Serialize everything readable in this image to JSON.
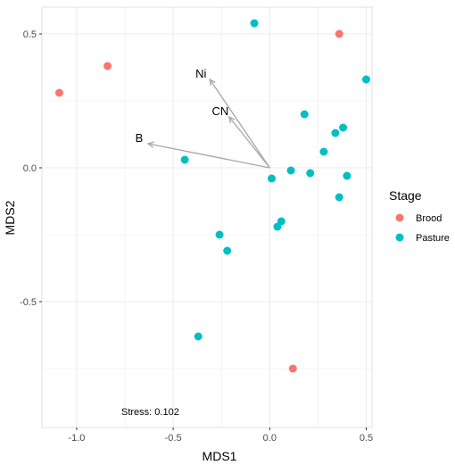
{
  "chart_data": {
    "type": "scatter",
    "xlabel": "MDS1",
    "ylabel": "MDS2",
    "xlim": [
      -1.18,
      0.53
    ],
    "ylim": [
      -0.97,
      0.6
    ],
    "x_ticks": [
      -1.0,
      -0.5,
      0.0,
      0.5
    ],
    "x_tick_labels": [
      "-1.0",
      "-0.5",
      "0.0",
      "0.5"
    ],
    "y_ticks": [
      0.5,
      0.0,
      -0.5
    ],
    "y_tick_labels": [
      "0.5",
      "0.0",
      "-0.5"
    ],
    "grid": true,
    "legend": {
      "title": "Stage",
      "placement": "right"
    },
    "annotation": "Stress: 0.102",
    "series": [
      {
        "name": "Brood",
        "color": "#F8766D",
        "points": [
          {
            "x": -1.09,
            "y": 0.28
          },
          {
            "x": -0.84,
            "y": 0.38
          },
          {
            "x": 0.36,
            "y": 0.5
          },
          {
            "x": 0.12,
            "y": -0.75
          }
        ]
      },
      {
        "name": "Pasture",
        "color": "#00BFC4",
        "points": [
          {
            "x": -0.08,
            "y": 0.54
          },
          {
            "x": 0.5,
            "y": 0.33
          },
          {
            "x": 0.18,
            "y": 0.2
          },
          {
            "x": 0.38,
            "y": 0.15
          },
          {
            "x": 0.34,
            "y": 0.13
          },
          {
            "x": 0.28,
            "y": 0.06
          },
          {
            "x": -0.44,
            "y": 0.03
          },
          {
            "x": 0.11,
            "y": -0.01
          },
          {
            "x": 0.21,
            "y": -0.02
          },
          {
            "x": 0.01,
            "y": -0.04
          },
          {
            "x": 0.4,
            "y": -0.03
          },
          {
            "x": 0.36,
            "y": -0.11
          },
          {
            "x": 0.06,
            "y": -0.2
          },
          {
            "x": 0.04,
            "y": -0.22
          },
          {
            "x": -0.26,
            "y": -0.25
          },
          {
            "x": -0.22,
            "y": -0.31
          },
          {
            "x": -0.37,
            "y": -0.63
          }
        ]
      }
    ],
    "vectors": [
      {
        "label": "Ni",
        "x": -0.31,
        "y": 0.33
      },
      {
        "label": "CN",
        "x": -0.21,
        "y": 0.19
      },
      {
        "label": "B",
        "x": -0.63,
        "y": 0.09
      }
    ],
    "vector_color": "#aaaaaa"
  }
}
